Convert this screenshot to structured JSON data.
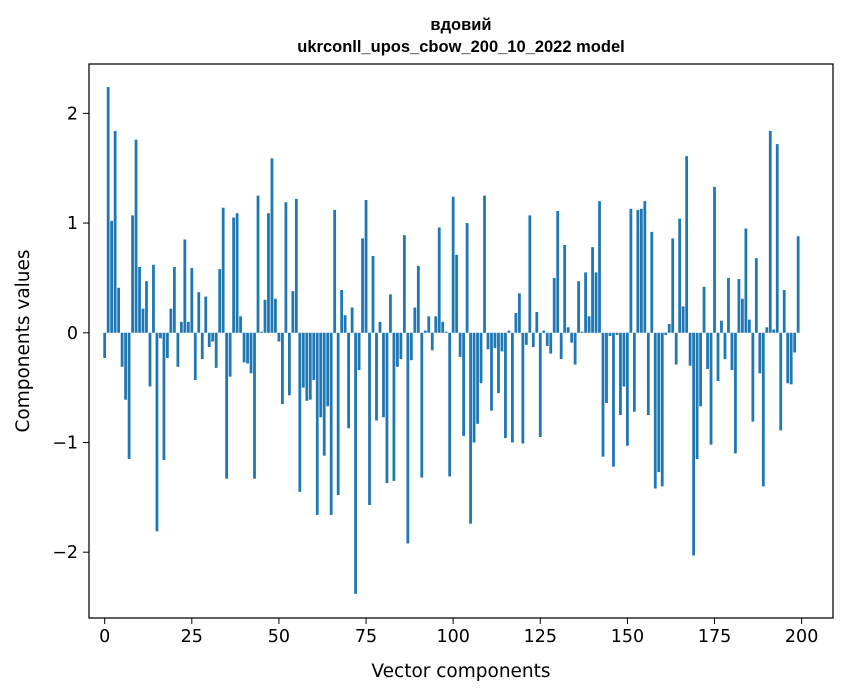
{
  "chart_data": {
    "type": "bar",
    "title": [
      "вдовий",
      "ukrconll_upos_cbow_200_10_2022 model"
    ],
    "xlabel": "Vector components",
    "ylabel": "Components values",
    "xlim": [
      -4.5,
      209
    ],
    "ylim": [
      -2.6,
      2.45
    ],
    "xticks": [
      0,
      25,
      50,
      75,
      100,
      125,
      150,
      175,
      200
    ],
    "yticks": [
      -2,
      -1,
      0,
      1,
      2
    ],
    "ytick_labels": [
      "−2",
      "−1",
      "0",
      "1",
      "2"
    ],
    "bar_color": "#1f77b4",
    "grid": false,
    "x": [
      0,
      1,
      2,
      3,
      4,
      5,
      6,
      7,
      8,
      9,
      10,
      11,
      12,
      13,
      14,
      15,
      16,
      17,
      18,
      19,
      20,
      21,
      22,
      23,
      24,
      25,
      26,
      27,
      28,
      29,
      30,
      31,
      32,
      33,
      34,
      35,
      36,
      37,
      38,
      39,
      40,
      41,
      42,
      43,
      44,
      45,
      46,
      47,
      48,
      49,
      50,
      51,
      52,
      53,
      54,
      55,
      56,
      57,
      58,
      59,
      60,
      61,
      62,
      63,
      64,
      65,
      66,
      67,
      68,
      69,
      70,
      71,
      72,
      73,
      74,
      75,
      76,
      77,
      78,
      79,
      80,
      81,
      82,
      83,
      84,
      85,
      86,
      87,
      88,
      89,
      90,
      91,
      92,
      93,
      94,
      95,
      96,
      97,
      98,
      99,
      100,
      101,
      102,
      103,
      104,
      105,
      106,
      107,
      108,
      109,
      110,
      111,
      112,
      113,
      114,
      115,
      116,
      117,
      118,
      119,
      120,
      121,
      122,
      123,
      124,
      125,
      126,
      127,
      128,
      129,
      130,
      131,
      132,
      133,
      134,
      135,
      136,
      137,
      138,
      139,
      140,
      141,
      142,
      143,
      144,
      145,
      146,
      147,
      148,
      149,
      150,
      151,
      152,
      153,
      154,
      155,
      156,
      157,
      158,
      159,
      160,
      161,
      162,
      163,
      164,
      165,
      166,
      167,
      168,
      169,
      170,
      171,
      172,
      173,
      174,
      175,
      176,
      177,
      178,
      179,
      180,
      181,
      182,
      183,
      184,
      185,
      186,
      187,
      188,
      189,
      190,
      191,
      192,
      193,
      194,
      195,
      196,
      197,
      198,
      199
    ],
    "values": [
      -0.23,
      2.24,
      1.02,
      1.84,
      0.41,
      -0.31,
      -0.61,
      -1.15,
      1.07,
      1.76,
      0.6,
      0.22,
      0.47,
      -0.49,
      0.62,
      -1.81,
      -0.05,
      -1.16,
      -0.23,
      0.22,
      0.6,
      -0.31,
      0.1,
      0.85,
      0.1,
      0.59,
      -0.43,
      0.37,
      -0.24,
      0.33,
      -0.13,
      -0.08,
      -0.32,
      0.58,
      1.14,
      -1.33,
      -0.4,
      1.05,
      1.09,
      0.15,
      -0.27,
      -0.28,
      -0.37,
      -1.33,
      1.25,
      0.01,
      0.3,
      1.09,
      1.59,
      0.31,
      -0.08,
      -0.65,
      1.19,
      -0.57,
      0.38,
      1.22,
      -1.45,
      -0.5,
      -0.62,
      -0.61,
      -0.43,
      -1.66,
      -0.77,
      -1.12,
      -0.67,
      -1.66,
      1.12,
      -1.48,
      0.39,
      0.16,
      -0.87,
      0.23,
      -2.38,
      -0.34,
      0.86,
      1.21,
      -1.57,
      0.7,
      -0.8,
      0.1,
      -0.77,
      -1.37,
      0.35,
      -1.35,
      -0.31,
      -0.24,
      0.89,
      -1.92,
      -0.25,
      0.23,
      0.61,
      -1.32,
      0.02,
      0.15,
      -0.16,
      0.15,
      0.96,
      0.1,
      0.01,
      -1.31,
      1.24,
      0.71,
      -0.22,
      -0.94,
      1.0,
      -1.74,
      -1.0,
      -0.83,
      -0.46,
      1.25,
      -0.15,
      -0.71,
      -0.14,
      -0.55,
      -0.17,
      -0.96,
      0.02,
      -1.0,
      0.18,
      0.36,
      -1.01,
      -0.11,
      1.07,
      -0.13,
      0.19,
      -0.95,
      0.02,
      -0.12,
      -0.19,
      0.5,
      1.11,
      -0.24,
      0.8,
      0.05,
      -0.09,
      -0.29,
      0.47,
      0.01,
      0.55,
      0.15,
      0.78,
      0.55,
      1.2,
      -1.13,
      -0.64,
      -0.03,
      -1.22,
      -0.02,
      -0.75,
      -0.49,
      -1.03,
      1.13,
      -0.72,
      1.12,
      1.13,
      1.2,
      -0.75,
      0.92,
      -1.42,
      -1.27,
      -1.4,
      -0.02,
      0.08,
      0.86,
      -0.29,
      1.04,
      0.24,
      1.61,
      -0.3,
      -2.03,
      -1.15,
      -0.67,
      0.42,
      -0.33,
      -1.02,
      1.33,
      -0.44,
      0.11,
      -0.24,
      0.5,
      -0.34,
      -1.1,
      0.49,
      0.31,
      0.95,
      0.12,
      -0.81,
      0.68,
      -0.37,
      -1.4,
      0.05,
      1.84,
      0.03,
      1.72,
      -0.89,
      0.39,
      -0.46,
      -0.47,
      -0.18,
      0.88
    ]
  }
}
